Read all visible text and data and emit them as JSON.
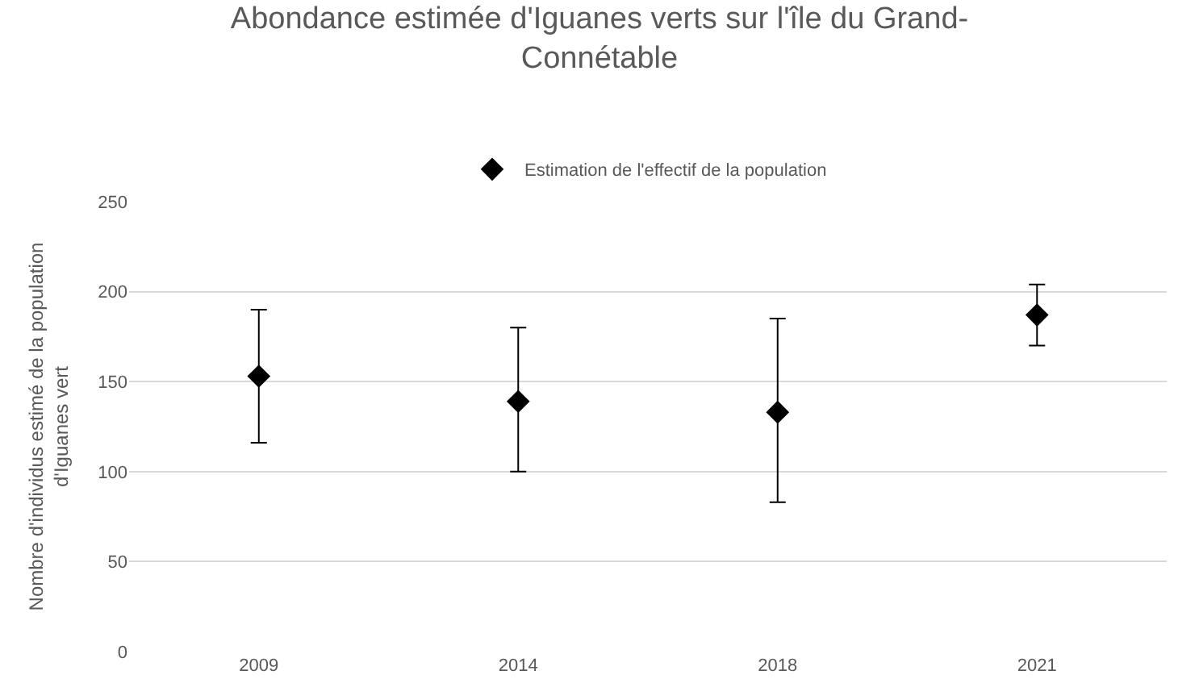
{
  "chart_data": {
    "type": "scatter",
    "title": "Abondance estimée d'Iguanes verts sur l'île du Grand-Connétable",
    "ylabel": "Nombre d'individus estimé de la population d'Iguanes vert",
    "categories": [
      "2009",
      "2014",
      "2018",
      "2021"
    ],
    "series": [
      {
        "name": "Estimation de l'effectif de la population",
        "color": "#000000",
        "values": [
          153,
          139,
          133,
          187
        ],
        "errors": [
          [
            116,
            190
          ],
          [
            100,
            180
          ],
          [
            83,
            185
          ],
          [
            170,
            204
          ]
        ]
      }
    ],
    "ylim": [
      0,
      250
    ],
    "yticks": [
      0,
      50,
      100,
      150,
      200,
      250
    ],
    "grid": "y",
    "legend": "top",
    "marker": "diamond"
  }
}
